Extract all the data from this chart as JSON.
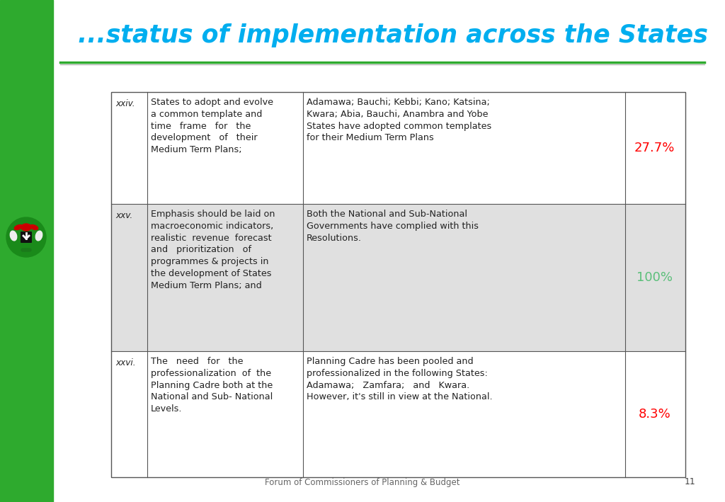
{
  "title": "...status of implementation across the States",
  "title_color": "#00AEEF",
  "title_style": "italic",
  "title_weight": "bold",
  "background_color": "#FFFFFF",
  "left_bar_color": "#2EAA2E",
  "header_line_color": "#2EAA2E",
  "footer_text": "Forum of Commissioners of Planning & Budget",
  "footer_page": "11",
  "table": {
    "rows": [
      {
        "num": "xxiv.",
        "resolution": "States to adopt and evolve\na common template and\ntime   frame   for   the\ndevelopment   of   their\nMedium Term Plans;",
        "status": "Adamawa; Bauchi; Kebbi; Kano; Katsina;\nKwara; Abia, Bauchi, Anambra and Yobe\nStates have adopted common templates\nfor their Medium Term Plans",
        "percent": "27.7%",
        "percent_color": "#FF0000",
        "bg_color": "#FFFFFF"
      },
      {
        "num": "xxv.",
        "resolution": "Emphasis should be laid on\nmacroeconomic indicators,\nrealistic  revenue  forecast\nand   prioritization   of\nprogrammes & projects in\nthe development of States\nMedium Term Plans; and",
        "status": "Both the National and Sub-National\nGovernments have complied with this\nResolutions.",
        "percent": "100%",
        "percent_color": "#5BBF7A",
        "bg_color": "#E0E0E0"
      },
      {
        "num": "xxvi.",
        "resolution": "The   need   for   the\nprofessionalization  of  the\nPlanning Cadre both at the\nNational and Sub- National\nLevels.",
        "status": "Planning Cadre has been pooled and\nprofessionalized in the following States:\nAdamawa;   Zamfara;   and   Kwara.\nHowever, it's still in view at the National.",
        "percent": "8.3%",
        "percent_color": "#FF0000",
        "bg_color": "#FFFFFF"
      }
    ]
  }
}
